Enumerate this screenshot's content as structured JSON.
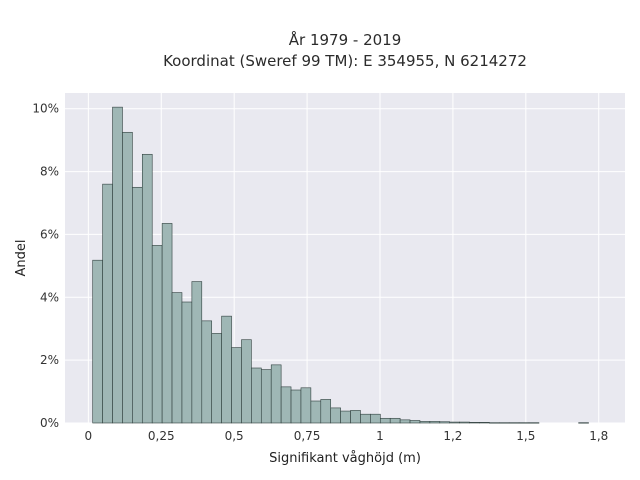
{
  "chart_data": {
    "type": "bar",
    "title": "År 1979 - 2019",
    "subtitle": "Koordinat (Sweref 99 TM): E 354955, N 6214272",
    "xlabel": "Signifikant våghöjd (m)",
    "ylabel": "Andel",
    "bin_width": 0.034,
    "bins_start": [
      0.015,
      0.049,
      0.083,
      0.117,
      0.151,
      0.185,
      0.219,
      0.253,
      0.287,
      0.321,
      0.355,
      0.389,
      0.423,
      0.457,
      0.491,
      0.525,
      0.559,
      0.593,
      0.627,
      0.661,
      0.695,
      0.729,
      0.763,
      0.797,
      0.831,
      0.865,
      0.899,
      0.933,
      0.967,
      1.001,
      1.035,
      1.069,
      1.103,
      1.137,
      1.171,
      1.205,
      1.239,
      1.273,
      1.307,
      1.341,
      1.375,
      1.409,
      1.443,
      1.477,
      1.511,
      1.545,
      1.579,
      1.613,
      1.647,
      1.681
    ],
    "values": [
      5.18,
      7.6,
      10.05,
      9.25,
      7.5,
      8.55,
      5.65,
      6.35,
      4.15,
      3.85,
      4.5,
      3.25,
      2.85,
      3.4,
      2.4,
      2.65,
      1.75,
      1.7,
      1.85,
      1.15,
      1.05,
      1.12,
      0.7,
      0.75,
      0.48,
      0.38,
      0.4,
      0.28,
      0.28,
      0.15,
      0.15,
      0.1,
      0.08,
      0.05,
      0.05,
      0.04,
      0.03,
      0.03,
      0.02,
      0.02,
      0.01,
      0.01,
      0.01,
      0.01,
      0.01,
      0,
      0,
      0,
      0,
      0.01
    ],
    "xlim": [
      -0.08,
      1.84
    ],
    "ylim": [
      0,
      10.5
    ],
    "x_ticks": [
      0,
      0.25,
      0.5,
      0.75,
      1,
      1.25,
      1.5,
      1.75
    ],
    "x_tick_labels": [
      "0",
      "0,25",
      "0,5",
      "0,75",
      "1",
      "1,2",
      "1,5",
      "1,8"
    ],
    "y_ticks": [
      0,
      2,
      4,
      6,
      8,
      10
    ],
    "y_tick_labels": [
      "0%",
      "2%",
      "4%",
      "6%",
      "8%",
      "10%"
    ],
    "grid": true,
    "colors": {
      "bar_fill": "#9fb7b5",
      "bar_edge": "#2f3f3d",
      "plot_bg": "#e9e9f0",
      "grid": "#ffffff"
    }
  }
}
